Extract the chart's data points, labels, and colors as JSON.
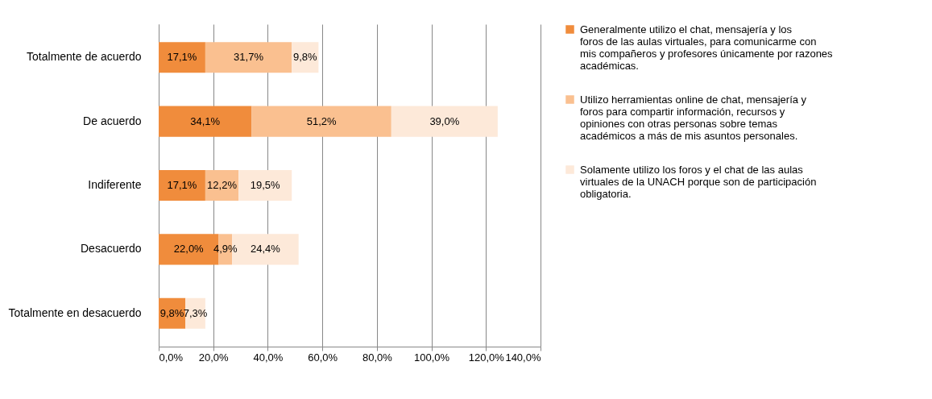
{
  "chart_data": {
    "type": "bar",
    "orientation": "horizontal",
    "stacked": true,
    "grid": "x",
    "legend": "right",
    "categories": [
      "Totalmente de acuerdo",
      "De acuerdo",
      "Indiferente",
      "Desacuerdo",
      "Totalmente en desacuerdo"
    ],
    "xlim": [
      0,
      140
    ],
    "xticks": [
      {
        "value": 0,
        "label": "0,0%"
      },
      {
        "value": 20,
        "label": "20,0%"
      },
      {
        "value": 40,
        "label": "40,0%"
      },
      {
        "value": 60,
        "label": "60,0%"
      },
      {
        "value": 80,
        "label": "80,0%"
      },
      {
        "value": 100,
        "label": "100,0%"
      },
      {
        "value": 120,
        "label": "120,0%"
      },
      {
        "value": 140,
        "label": "140,0%"
      }
    ],
    "series": [
      {
        "name": "Generalmente utilizo el chat, mensajería y los foros de las aulas virtuales, para comunicarme con mis compañeros y profesores únicamente por razones académicas.",
        "color": "#f08c3c",
        "values": [
          17.1,
          34.1,
          17.1,
          22.0,
          9.8
        ],
        "value_labels": [
          "17,1%",
          "34,1%",
          "17,1%",
          "22,0%",
          "9,8%"
        ]
      },
      {
        "name": "Utilizo herramientas online de chat, mensajería y foros para compartir información, recursos y opiniones con otras personas sobre temas académicos a más de mis asuntos personales.",
        "color": "#fac090",
        "values": [
          31.7,
          51.2,
          12.2,
          4.9,
          null
        ],
        "value_labels": [
          "31,7%",
          "51,2%",
          "12,2%",
          "4,9%",
          null
        ]
      },
      {
        "name": "Solamente utilizo los foros y el chat de las aulas virtuales de la UNACH porque son de participación obligatoria.",
        "color": "#fde9d9",
        "values": [
          9.8,
          39.0,
          19.5,
          24.4,
          7.3
        ],
        "value_labels": [
          "9,8%",
          "39,0%",
          "19,5%",
          "24,4%",
          "7,3%"
        ]
      }
    ]
  }
}
